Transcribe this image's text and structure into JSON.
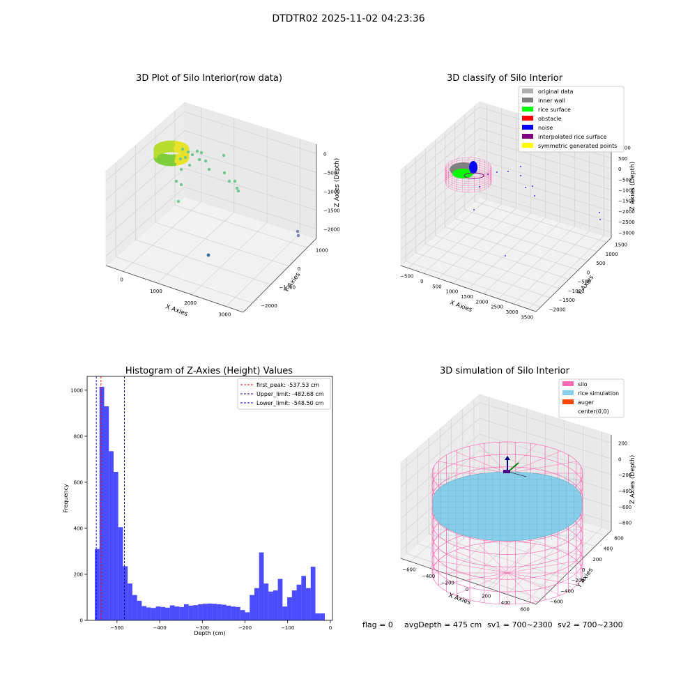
{
  "figure_title": "DTDTR02 2025-11-02 04:23:36",
  "panel1": {
    "title": "3D Plot of Silo Interior(row data)",
    "xlabel": "X Axies",
    "ylabel": "Y Axies",
    "zlabel": "Z Axies (Depth)",
    "xticks": [
      "0",
      "1000",
      "2000",
      "3000"
    ],
    "yticks": [
      "1000",
      "0",
      "−1000",
      "−2000"
    ],
    "zticks": [
      "0",
      "−500",
      "−1000",
      "−1500",
      "−2000"
    ]
  },
  "panel2": {
    "title": "3D classify of Silo Interior",
    "xlabel": "X Axies",
    "ylabel": "Y Axies",
    "zlabel": "Z Axies (Depth)",
    "xticks": [
      "−500",
      "0",
      "500",
      "1000",
      "1500",
      "2000",
      "2500",
      "3000",
      "3500"
    ],
    "yticks": [
      "1500",
      "1000",
      "500",
      "0",
      "−500",
      "−1000",
      "−1500",
      "−2000"
    ],
    "zticks": [
      "1000",
      "500",
      "0",
      "−500",
      "−1000",
      "−1500",
      "−2000",
      "−2500",
      "−3000"
    ],
    "legend": [
      {
        "label": "original data",
        "color": "#b0b0b0"
      },
      {
        "label": "inner wall",
        "color": "#808080"
      },
      {
        "label": "rice surface",
        "color": "#00ff00"
      },
      {
        "label": "obstacle",
        "color": "#ff0000"
      },
      {
        "label": "noise",
        "color": "#0000ff"
      },
      {
        "label": "interpolated rice surface",
        "color": "#800080"
      },
      {
        "label": "symmetric generated points",
        "color": "#ffff00"
      }
    ]
  },
  "panel4": {
    "title": "3D simulation of Silo Interior",
    "xlabel": "X Axies",
    "ylabel": "Y Axies",
    "zlabel": "Z Axies (Depth)",
    "xticks": [
      "−600",
      "−400",
      "−200",
      "0",
      "200",
      "400",
      "600"
    ],
    "yticks": [
      "600",
      "400",
      "200",
      "0",
      "−200",
      "−400",
      "−600"
    ],
    "zticks": [
      "200",
      "0",
      "−200",
      "−400",
      "−600",
      "−800"
    ],
    "legend": [
      {
        "label": "silo",
        "color": "#ff69b4"
      },
      {
        "label": "rice simulation",
        "color": "#87ceeb"
      },
      {
        "label": "auger",
        "color": "#ff4500"
      },
      {
        "label": "center(0,0)",
        "color": ""
      }
    ]
  },
  "footer": {
    "flag": "flag = 0",
    "avg": "avgDepth = 475 cm",
    "sv1": "sv1 = 700~2300",
    "sv2": "sv2 = 700~2300"
  },
  "chart_data": [
    {
      "type": "scatter",
      "title": "3D Plot of Silo Interior(row data)",
      "xlabel": "X Axies",
      "ylabel": "Y Axies",
      "zlabel": "Z Axies (Depth)",
      "xlim": [
        -500,
        3700
      ],
      "ylim": [
        -2300,
        1700
      ],
      "zlim": [
        -2200,
        100
      ],
      "grid": true
    },
    {
      "type": "scatter",
      "title": "3D classify of Silo Interior",
      "xlabel": "X Axies",
      "ylabel": "Y Axies",
      "zlabel": "Z Axies (Depth)",
      "xlim": [
        -600,
        3600
      ],
      "ylim": [
        -2100,
        1700
      ],
      "zlim": [
        -3100,
        1100
      ],
      "legend_position": "top-right",
      "grid": true
    },
    {
      "type": "bar",
      "title": "Histogram of Z-Axies (Height) Values",
      "xlabel": "Depth (cm)",
      "ylabel": "Frequency",
      "xlim": [
        -570,
        5
      ],
      "ylim": [
        0,
        1060
      ],
      "xticks": [
        -500,
        -400,
        -300,
        -200,
        -100,
        0
      ],
      "yticks": [
        0,
        200,
        400,
        600,
        800,
        1000
      ],
      "bin_start": -552,
      "bin_width": 11,
      "values": [
        310,
        1015,
        930,
        735,
        645,
        405,
        235,
        160,
        110,
        85,
        62,
        56,
        54,
        60,
        58,
        55,
        65,
        60,
        58,
        70,
        64,
        66,
        70,
        72,
        73,
        72,
        70,
        68,
        64,
        60,
        58,
        45,
        35,
        110,
        140,
        295,
        160,
        125,
        130,
        180,
        60,
        100,
        130,
        155,
        193,
        140,
        233,
        30,
        30
      ],
      "bar_color": "#0000ff",
      "vlines": [
        {
          "label": "first_peak: -537.53 cm",
          "x": -537.53,
          "color": "#ff0000"
        },
        {
          "label": "Upper_limit: -482.68 cm",
          "x": -482.68,
          "color": "#00008b"
        },
        {
          "label": "Lower_limit: -548.50 cm",
          "x": -548.5,
          "color": "#0000ff"
        }
      ],
      "legend_position": "top-right"
    },
    {
      "type": "surface",
      "title": "3D simulation of Silo Interior",
      "xlabel": "X Axies",
      "ylabel": "Y Axies",
      "zlabel": "Z Axies (Depth)",
      "xlim": [
        -650,
        650
      ],
      "ylim": [
        -650,
        650
      ],
      "zlim": [
        -950,
        300
      ],
      "legend_position": "top-right",
      "grid": true
    }
  ]
}
